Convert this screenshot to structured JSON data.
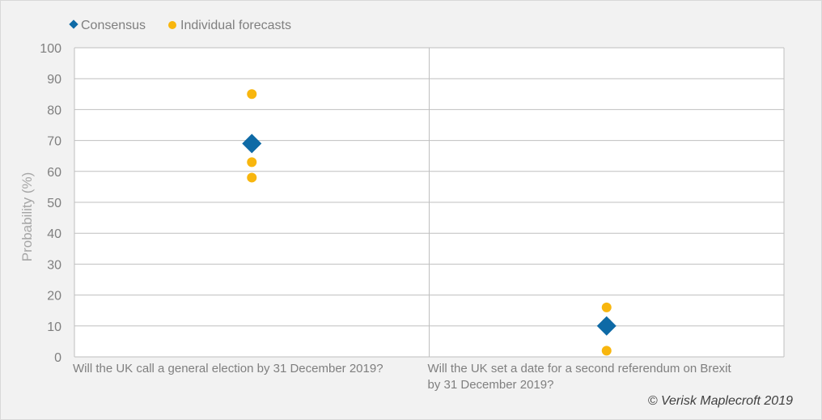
{
  "chart_data": {
    "type": "scatter",
    "ylabel": "Probability (%)",
    "ylim": [
      0,
      100
    ],
    "yticks": [
      0,
      10,
      20,
      30,
      40,
      50,
      60,
      70,
      80,
      90,
      100
    ],
    "grid": true,
    "legend_position": "top-left",
    "categories": [
      {
        "lines": [
          "Will the UK call a general election by 31 December 2019?"
        ],
        "consensus": 69,
        "forecasts": [
          85,
          63,
          58
        ]
      },
      {
        "lines": [
          "Will the UK set a date for a second referendum on Brexit",
          "by 31 December 2019?"
        ],
        "consensus": 10,
        "forecasts": [
          16,
          11,
          2
        ]
      }
    ],
    "series": [
      {
        "name": "Consensus",
        "marker": "diamond",
        "color": "#0e6aa6"
      },
      {
        "name": "Individual forecasts",
        "marker": "circle",
        "color": "#f8b60e"
      }
    ]
  },
  "credit": "© Verisk Maplecroft 2019"
}
